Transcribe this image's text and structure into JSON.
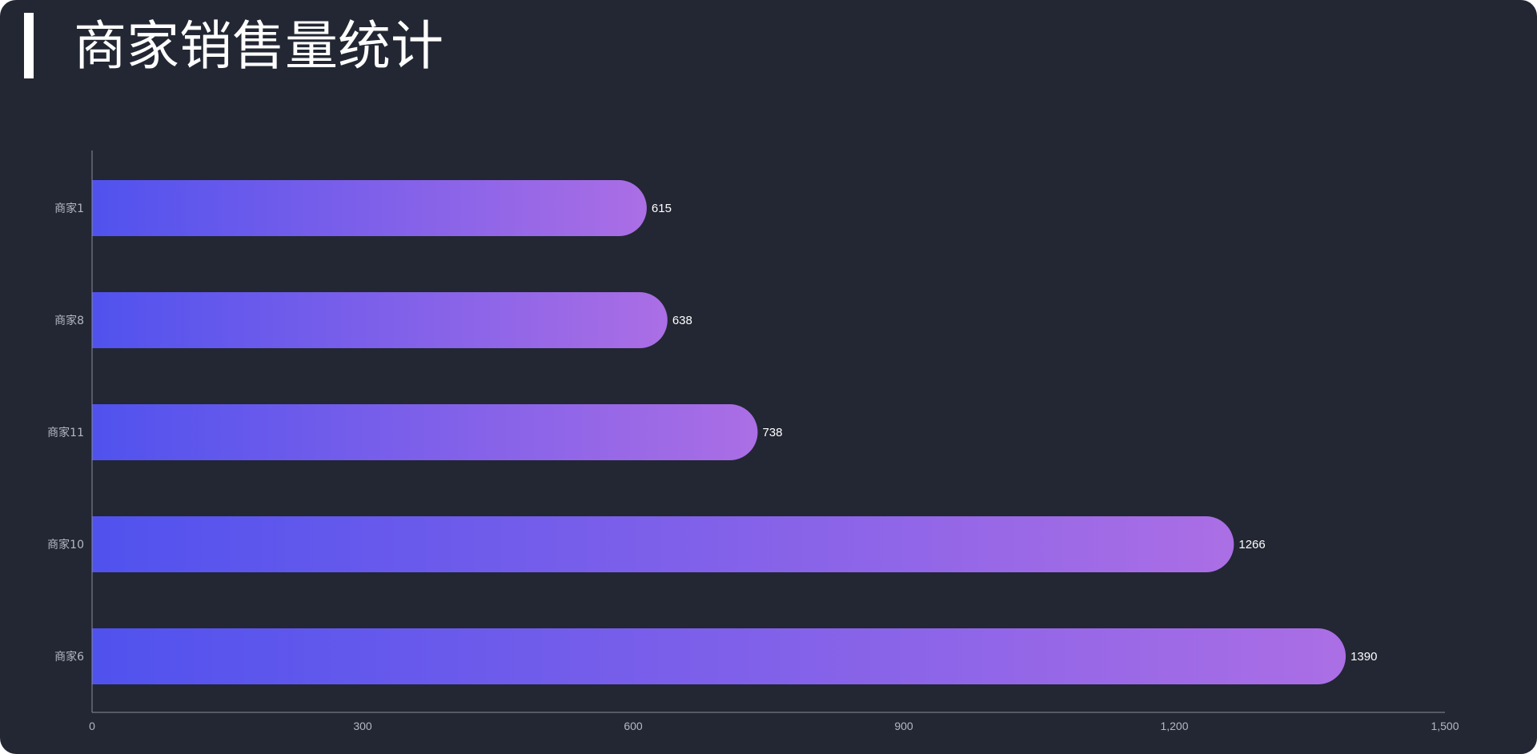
{
  "page": {
    "title": "商家销售量统计",
    "colors": {
      "background": "#222733",
      "bar_gradient_start": "#5052ee",
      "bar_gradient_end": "#ab6ee5",
      "axis_line": "#8a8d96",
      "text": "#ffffff"
    }
  },
  "chart_data": {
    "type": "bar",
    "orientation": "horizontal",
    "title": "商家销售量统计",
    "categories": [
      "商家1",
      "商家8",
      "商家11",
      "商家10",
      "商家6"
    ],
    "values": [
      615,
      638,
      738,
      1266,
      1390
    ],
    "value_labels": [
      "615",
      "638",
      "738",
      "1266",
      "1390"
    ],
    "xlim": [
      0,
      1500
    ],
    "xticks": [
      0,
      300,
      600,
      900,
      1200,
      1500
    ],
    "xtick_labels": [
      "0",
      "300",
      "600",
      "900",
      "1,200",
      "1,500"
    ],
    "xlabel": "",
    "ylabel": "",
    "grid": false,
    "legend": "none"
  }
}
